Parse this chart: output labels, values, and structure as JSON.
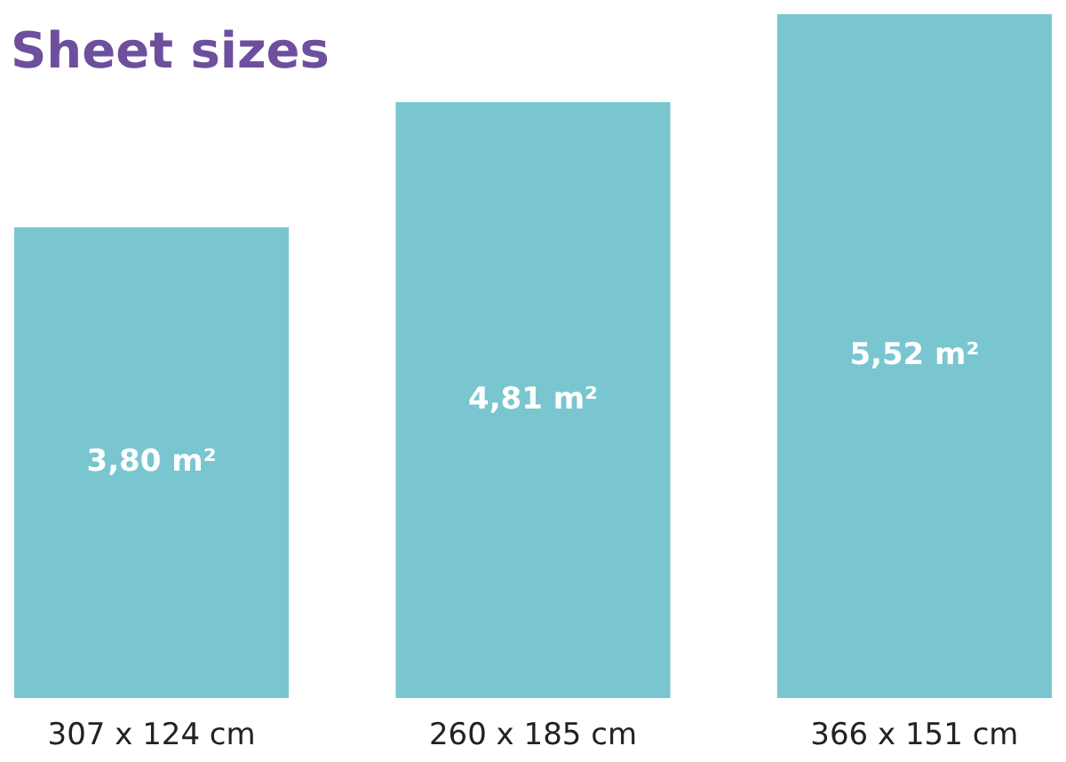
{
  "chart_data": {
    "type": "bar",
    "title": "Sheet sizes",
    "categories": [
      "307 x 124 cm",
      "260 x 185 cm",
      "366 x 151 cm"
    ],
    "values": [
      3.8,
      4.81,
      5.52
    ],
    "value_labels": [
      "3,80 m²",
      "4,81 m²",
      "5,52 m²"
    ],
    "color": "#79c6d0"
  }
}
